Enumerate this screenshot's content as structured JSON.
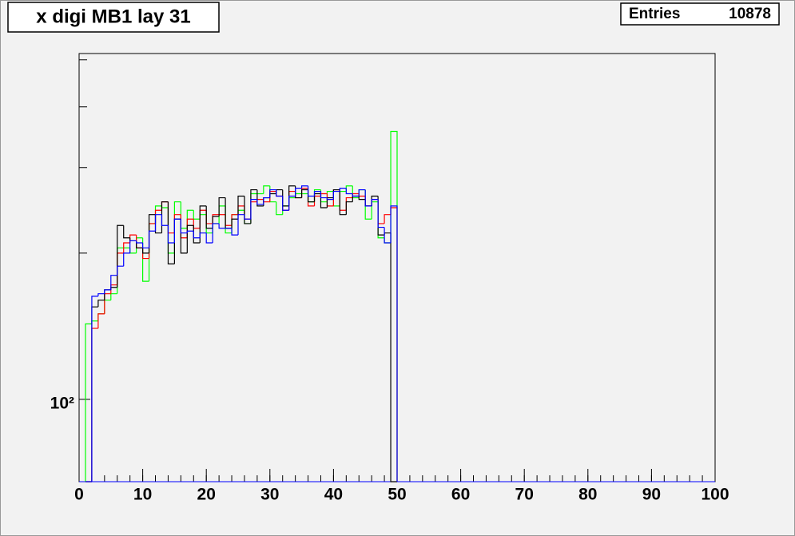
{
  "chart_data": {
    "type": "histogram",
    "title": "x digi MB1 lay 31",
    "stats_label": "Entries",
    "stats_value": "10878",
    "bins": [
      1,
      2,
      3,
      4,
      5,
      6,
      7,
      8,
      9,
      10,
      11,
      12,
      13,
      14,
      15,
      16,
      17,
      18,
      19,
      20,
      21,
      22,
      23,
      24,
      25,
      26,
      27,
      28,
      29,
      30,
      31,
      32,
      33,
      34,
      35,
      36,
      37,
      38,
      39,
      40,
      41,
      42,
      43,
      44,
      45,
      46,
      47,
      48,
      49,
      50
    ],
    "series": [
      {
        "color": "#000000",
        "values": [
          0,
          155,
          160,
          168,
          170,
          228,
          215,
          212,
          205,
          200,
          240,
          220,
          255,
          190,
          235,
          200,
          228,
          210,
          250,
          225,
          238,
          260,
          225,
          235,
          262,
          230,
          270,
          250,
          260,
          265,
          270,
          250,
          275,
          260,
          270,
          255,
          265,
          248,
          260,
          270,
          240,
          255,
          262,
          258,
          250,
          262,
          218,
          220,
          0
        ]
      },
      {
        "color": "#ff0000",
        "values": [
          0,
          140,
          150,
          165,
          172,
          200,
          210,
          218,
          205,
          195,
          230,
          245,
          255,
          220,
          240,
          215,
          235,
          225,
          245,
          230,
          240,
          240,
          228,
          240,
          250,
          235,
          255,
          258,
          255,
          268,
          262,
          245,
          268,
          260,
          272,
          250,
          262,
          265,
          250,
          270,
          245,
          260,
          265,
          262,
          250,
          258,
          230,
          240,
          248
        ]
      },
      {
        "color": "#00ff00",
        "values": [
          143,
          145,
          150,
          160,
          165,
          205,
          205,
          200,
          215,
          175,
          230,
          250,
          248,
          200,
          255,
          225,
          245,
          235,
          240,
          220,
          230,
          250,
          220,
          240,
          245,
          230,
          265,
          265,
          275,
          255,
          240,
          250,
          260,
          265,
          265,
          255,
          270,
          255,
          268,
          250,
          268,
          275,
          260,
          270,
          235,
          255,
          215,
          210,
          356
        ]
      },
      {
        "color": "#0000ff",
        "values": [
          0,
          163,
          165,
          168,
          180,
          188,
          200,
          212,
          210,
          205,
          222,
          240,
          228,
          210,
          235,
          220,
          222,
          215,
          220,
          210,
          230,
          225,
          225,
          218,
          240,
          235,
          258,
          252,
          260,
          270,
          262,
          245,
          262,
          272,
          275,
          262,
          268,
          260,
          258,
          268,
          272,
          265,
          262,
          270,
          250,
          258,
          226,
          210,
          250
        ]
      }
    ],
    "xlim": [
      0,
      100
    ],
    "xticks": [
      0,
      10,
      20,
      30,
      40,
      50,
      60,
      70,
      80,
      90,
      100
    ],
    "x_minor_step": 2,
    "ylim": [
      67.7,
      515
    ],
    "log_y": true,
    "yticks": [
      {
        "value": 100,
        "label": "10²"
      }
    ],
    "y_minor_ticks": [
      200,
      300,
      400,
      500
    ]
  }
}
